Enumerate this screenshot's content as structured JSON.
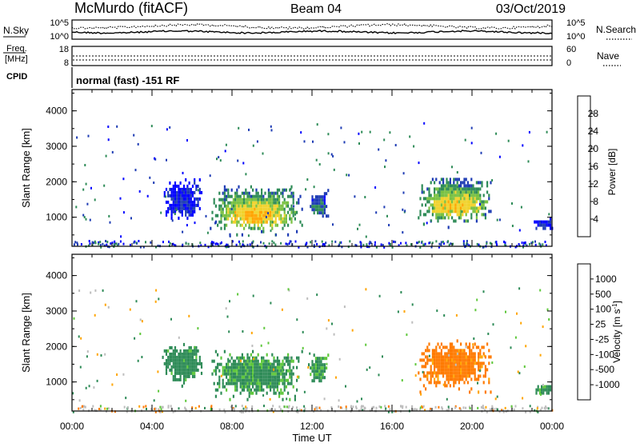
{
  "header": {
    "station": "McMurdo (fitACF)",
    "beam": "Beam 04",
    "date": "03/Oct/2019"
  },
  "noise_panel": {
    "left_label": "N.Sky",
    "right_label": "N.Search",
    "left_ticks": [
      "10^5",
      "10^0"
    ],
    "right_ticks": [
      "10^5",
      "10^0"
    ]
  },
  "freq_panel": {
    "left_label_1": "Freq.",
    "left_label_2": "[MHz]",
    "right_label": "Nave",
    "left_ticks": [
      "18",
      "8"
    ],
    "right_ticks": [
      "60",
      "0"
    ],
    "cpid_label": "CPID",
    "cpid_text": "normal (fast) -151 RF"
  },
  "chart_data": [
    {
      "type": "heatmap",
      "name": "power",
      "ylabel": "Slant Range [km]",
      "xlabel": "",
      "ylim": [
        180,
        4600
      ],
      "yticks": [
        "1000",
        "2000",
        "3000",
        "4000"
      ],
      "colorbar_label": "Power [dB]",
      "colorbar_ticks": [
        "4",
        "8",
        "12",
        "16",
        "20",
        "24",
        "28"
      ],
      "colors": [
        "#0000ff",
        "#1e3cb4",
        "#2e8b57",
        "#79c142",
        "#f0d22c",
        "#ffa500",
        "#ff6a00",
        "#f20000"
      ],
      "echo_regions": [
        {
          "t_start": 6.8,
          "t_end": 11.5,
          "r_low": 500,
          "r_high": 1900,
          "peak_db": 30
        },
        {
          "t_start": 4.5,
          "t_end": 6.5,
          "r_low": 900,
          "r_high": 2100,
          "peak_db": 6
        },
        {
          "t_start": 11.8,
          "t_end": 12.8,
          "r_low": 900,
          "r_high": 1800,
          "peak_db": 12
        },
        {
          "t_start": 17.2,
          "t_end": 21.0,
          "r_low": 750,
          "r_high": 2200,
          "peak_db": 28
        },
        {
          "t_start": 23.0,
          "t_end": 24.0,
          "r_low": 650,
          "r_high": 1000,
          "peak_db": 8
        }
      ]
    },
    {
      "type": "heatmap",
      "name": "velocity",
      "ylabel": "Slant Range [km]",
      "xlabel": "Time UT",
      "ylim": [
        180,
        4600
      ],
      "yticks": [
        "1000",
        "2000",
        "3000",
        "4000"
      ],
      "xticks": [
        "00:00",
        "04:00",
        "08:00",
        "12:00",
        "16:00",
        "20:00",
        "00:00"
      ],
      "xlim": [
        0,
        24
      ],
      "colorbar_label": "Velocity [m s",
      "colorbar_label_sup": "-1",
      "colorbar_label_end": "]",
      "colorbar_ticks": [
        "1000",
        "500",
        "100",
        "25",
        "-25",
        "-100",
        "-500",
        "-1000"
      ],
      "colors": [
        "#1a3cc8",
        "#2e5fa8",
        "#2e8b57",
        "#5fc83c",
        "#bdbdbd",
        "#ffa500",
        "#ff7a00",
        "#f03c00",
        "#e00000"
      ],
      "echo_regions": [
        {
          "t_start": 6.8,
          "t_end": 11.5,
          "r_low": 500,
          "r_high": 1900,
          "velocity": 150
        },
        {
          "t_start": 4.5,
          "t_end": 6.5,
          "r_low": 900,
          "r_high": 2100,
          "velocity": 200
        },
        {
          "t_start": 11.8,
          "t_end": 12.8,
          "r_low": 900,
          "r_high": 1800,
          "velocity": 150
        },
        {
          "t_start": 17.2,
          "t_end": 21.0,
          "r_low": 750,
          "r_high": 2200,
          "velocity": -200
        },
        {
          "t_start": 23.0,
          "t_end": 24.0,
          "r_low": 650,
          "r_high": 1000,
          "velocity": 150
        }
      ]
    }
  ]
}
